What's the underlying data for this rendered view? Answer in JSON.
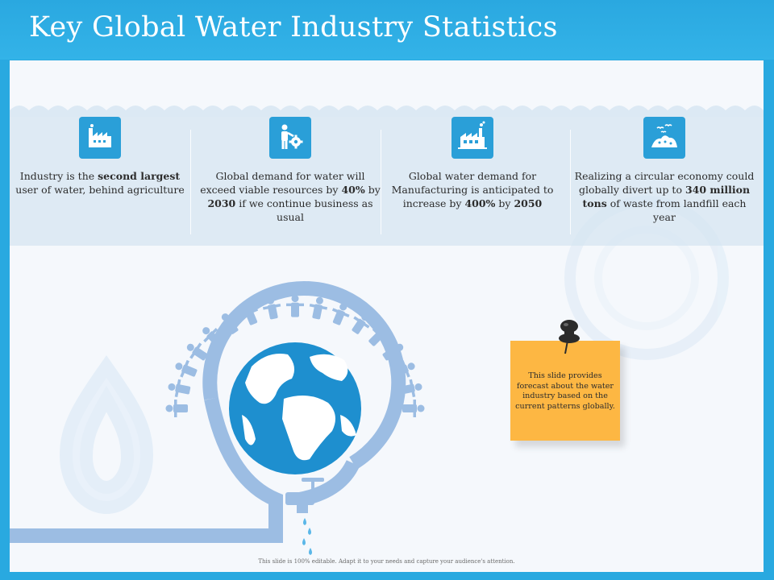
{
  "title": "Key Global Water Industry Statistics",
  "stats": [
    {
      "icon": "factory-icon",
      "pre": "Industry is the ",
      "bold1": "second largest",
      "mid1": " user of water, behind agriculture",
      "bold2": "",
      "mid2": "",
      "bold3": "",
      "post": ""
    },
    {
      "icon": "person-gear-icon",
      "pre": "Global demand for water will exceed viable resources by ",
      "bold1": "40%",
      "mid1": " by ",
      "bold2": "2030",
      "mid2": " if we continue business as usual",
      "bold3": "",
      "post": ""
    },
    {
      "icon": "manufacturing-plant-icon",
      "pre": "Global water demand for Manufacturing is anticipated to increase by ",
      "bold1": "400%",
      "mid1": " by ",
      "bold2": "2050",
      "mid2": "",
      "bold3": "",
      "post": ""
    },
    {
      "icon": "landfill-birds-icon",
      "pre": "Realizing a circular economy could globally divert up to ",
      "bold1": "340 million tons",
      "mid1": " of waste from landfill each year",
      "bold2": "",
      "mid2": "",
      "bold3": "",
      "post": ""
    }
  ],
  "note": {
    "text": "This slide provides forecast about the water industry based on the current patterns globally."
  },
  "footer": "This slide is 100% editable. Adapt it to your needs and capture your audience's attention.",
  "colors": {
    "header": "#29a9e0",
    "icon_box": "#2a9fd8",
    "note": "#fdb743",
    "pipe": "#9cbde3",
    "globe": "#1e8fcf"
  }
}
